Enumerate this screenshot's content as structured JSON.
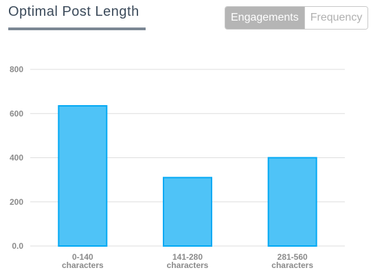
{
  "header": {
    "title": "Optimal Post Length",
    "tabs": [
      "Engagements",
      "Frequency"
    ],
    "active_tab": 0
  },
  "chart_data": {
    "type": "bar",
    "categories": [
      "0-140 characters",
      "141-280 characters",
      "281-560 characters"
    ],
    "values": [
      635,
      310,
      400
    ],
    "color": "#4fc3f7",
    "edge_color": "#03a9f4",
    "ylim": [
      0,
      800
    ],
    "yticks": [
      {
        "value": 0,
        "label": "0.0"
      },
      200,
      400,
      600,
      800
    ],
    "grid": true
  }
}
